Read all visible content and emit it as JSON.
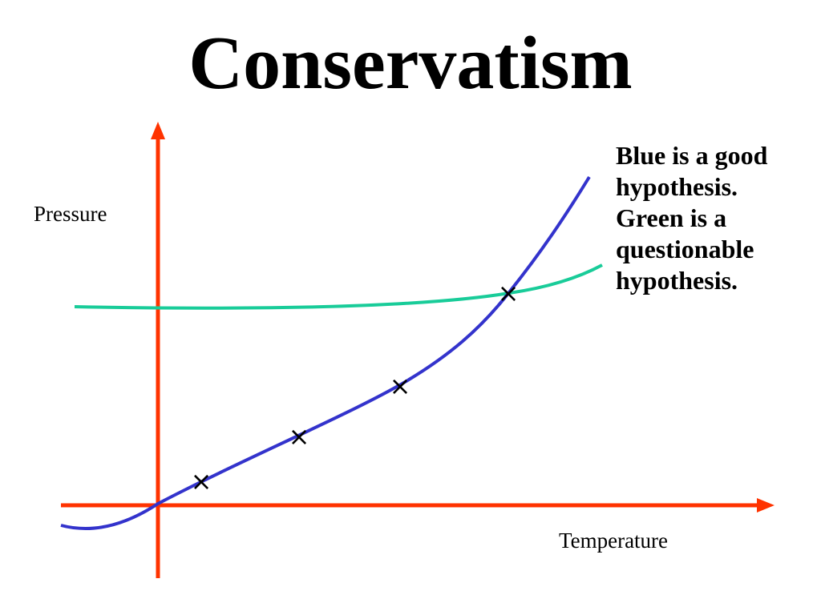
{
  "title": "Conservatism",
  "axes": {
    "y_label": "Pressure",
    "x_label": "Temperature"
  },
  "note_lines": [
    "Blue is a good",
    "hypothesis.",
    "Green is a",
    "questionable",
    "hypothesis."
  ],
  "colors": {
    "axes": "#ff3300",
    "good_hypothesis": "#3333cc",
    "questionable_hypothesis": "#19cc99",
    "points": "#000000"
  },
  "data_point_marker": "×"
}
